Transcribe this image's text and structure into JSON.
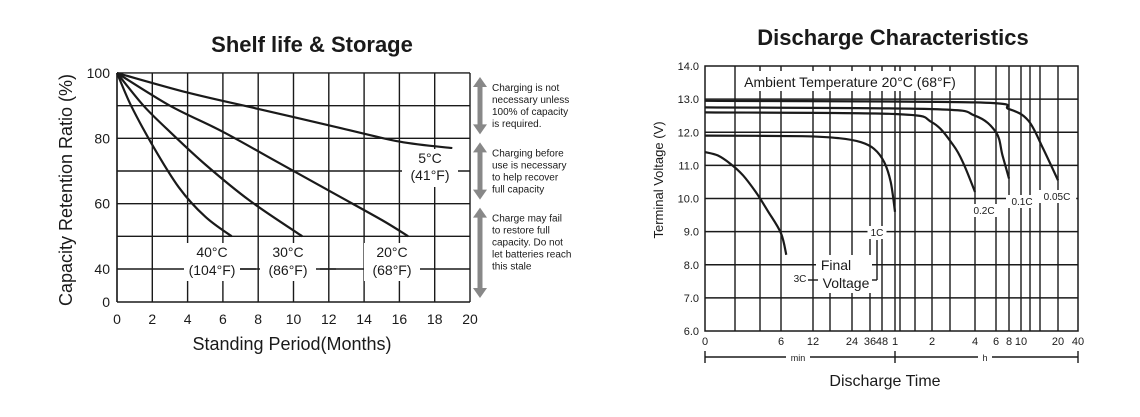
{
  "chart_data": [
    {
      "type": "line",
      "title": "Shelf life & Storage",
      "xlabel": "Standing Period(Months)",
      "ylabel": "Capacity Retention Ratio (%)",
      "xlim": [
        0,
        20
      ],
      "ylim": [
        0,
        100
      ],
      "x_ticks": [
        "0",
        "2",
        "4",
        "6",
        "8",
        "10",
        "12",
        "14",
        "16",
        "18",
        "20"
      ],
      "y_ticks": [
        "0",
        "40",
        "60",
        "80",
        "100"
      ],
      "grid": true,
      "series": [
        {
          "name_lines": [
            "40°C",
            "(104°F)"
          ],
          "x": [
            0,
            0.8,
            2,
            3.5,
            5,
            6.5
          ],
          "y": [
            100,
            90,
            78,
            65,
            56,
            50
          ]
        },
        {
          "name_lines": [
            "30°C",
            "(86°F)"
          ],
          "x": [
            0,
            1.5,
            3,
            5,
            7.5,
            10.5
          ],
          "y": [
            100,
            90,
            82,
            72,
            61,
            50
          ]
        },
        {
          "name_lines": [
            "20°C",
            "(68°F)"
          ],
          "x": [
            0,
            3,
            6,
            9,
            12,
            15,
            16.5
          ],
          "y": [
            100,
            90,
            82,
            73,
            64,
            55,
            50
          ]
        },
        {
          "name_lines": [
            "5°C",
            "(41°F)"
          ],
          "x": [
            0,
            4,
            8,
            12,
            16,
            19
          ],
          "y": [
            100,
            94,
            89,
            84,
            79,
            77
          ]
        }
      ],
      "annotations": [
        {
          "lines": [
            "Charging is not",
            "necessary unless",
            "100% of capacity",
            "is required."
          ],
          "range": [
            80,
            100
          ]
        },
        {
          "lines": [
            "Charging before",
            "use is necessary",
            "to help recover",
            "full capacity"
          ],
          "range": [
            60,
            80
          ]
        },
        {
          "lines": [
            "Charge may fail",
            "to restore full",
            "capacity. Do not",
            "let batteries reach",
            "this stale"
          ],
          "range": [
            0,
            60
          ]
        }
      ]
    },
    {
      "type": "line",
      "title": "Discharge Characteristics",
      "subtitle": "Ambient Temperature 20°C (68°F)",
      "xlabel": "Discharge Time",
      "ylabel": "Terminal Voltage (V)",
      "ylim": [
        6.0,
        14.0
      ],
      "y_ticks": [
        "6.0",
        "7.0",
        "8.0",
        "9.0",
        "10.0",
        "11.0",
        "12.0",
        "13.0",
        "14.0"
      ],
      "x_ticks": [
        "0",
        "6",
        "12",
        "24",
        "36",
        "48",
        "1",
        "2",
        "4",
        "6",
        "8",
        "10",
        "20",
        "40"
      ],
      "x_unit_labels": [
        "min",
        "h"
      ],
      "grid": true,
      "final_voltage_label": [
        "Final",
        "Voltage"
      ],
      "series": [
        {
          "name": "3C",
          "x_min": [
            0,
            1,
            2,
            3,
            4,
            5,
            6,
            7
          ],
          "y": [
            11.4,
            11.3,
            11.05,
            10.7,
            10.2,
            9.6,
            8.95,
            8.3
          ]
        },
        {
          "name": "1C",
          "x_min": [
            0,
            10,
            20,
            30,
            40,
            50,
            56,
            60
          ],
          "y": [
            11.9,
            11.88,
            11.82,
            11.7,
            11.5,
            11.1,
            10.5,
            9.6
          ]
        },
        {
          "name": "0.2C",
          "x_min": [
            0,
            60,
            120,
            180,
            210,
            240
          ],
          "y": [
            12.6,
            12.55,
            12.3,
            11.6,
            11.0,
            10.2
          ]
        },
        {
          "name": "0.1C",
          "x_min": [
            0,
            120,
            240,
            360,
            420,
            480
          ],
          "y": [
            12.75,
            12.7,
            12.5,
            12.0,
            11.3,
            10.6
          ]
        },
        {
          "name": "0.05C",
          "x_min": [
            0,
            240,
            480,
            720,
            960,
            1200
          ],
          "y": [
            12.95,
            12.9,
            12.7,
            12.35,
            11.5,
            10.55
          ]
        }
      ]
    }
  ]
}
